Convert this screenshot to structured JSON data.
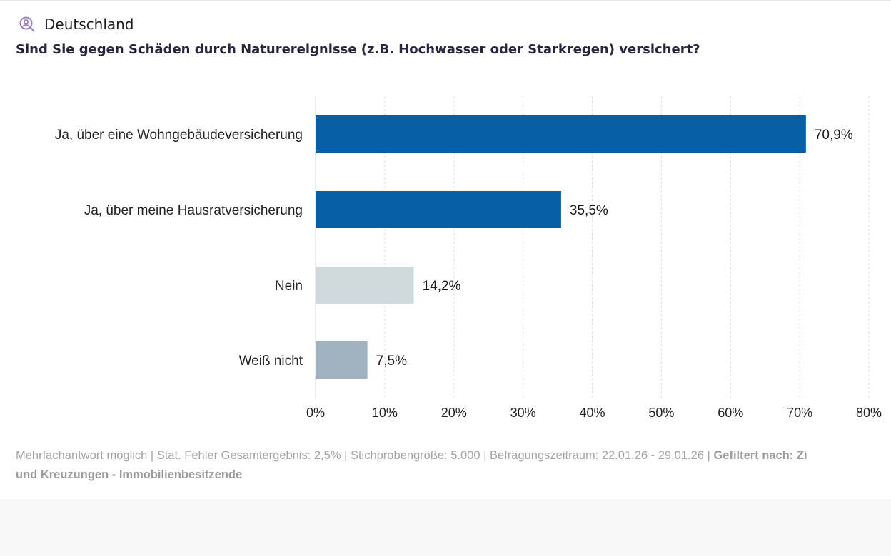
{
  "header": {
    "region": "Deutschland",
    "icon": "person-search-icon",
    "icon_color": "#9b7fc4"
  },
  "question": "Sind Sie gegen Schäden durch Naturereignisse (z.B. Hochwasser oder Starkregen) versichert?",
  "chart_data": {
    "type": "bar",
    "orientation": "horizontal",
    "categories": [
      "Ja, über eine Wohngebäudeversicherung",
      "Ja, über meine Hausratversicherung",
      "Nein",
      "Weiß nicht"
    ],
    "values": [
      70.9,
      35.5,
      14.2,
      7.5
    ],
    "value_labels": [
      "70,9%",
      "35,5%",
      "14,2%",
      "7,5%"
    ],
    "colors": [
      "#0560a8",
      "#0560a8",
      "#cfd9de",
      "#a1b1bf"
    ],
    "xlim": [
      0,
      80
    ],
    "xticks": [
      0,
      10,
      20,
      30,
      40,
      50,
      60,
      70,
      80
    ],
    "xtick_labels": [
      "0%",
      "10%",
      "20%",
      "30%",
      "40%",
      "50%",
      "60%",
      "70%",
      "80%"
    ],
    "grid": "vertical dashed"
  },
  "footer": {
    "line1": "Mehrfachantwort möglich | Stat. Fehler Gesamtergebnis: 2,5% | Stichprobengröße: 5.000 | Befragungszeitraum: 22.01.26 - 29.01.26 | ",
    "filter_label": "Gefiltert nach: Zi",
    "line2": "und Kreuzungen - Immobilienbesitzende"
  }
}
